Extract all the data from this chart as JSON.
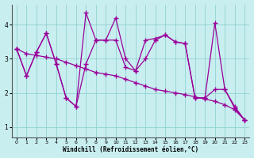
{
  "xlabel": "Windchill (Refroidissement éolien,°C)",
  "background_color": "#c8eef0",
  "line_color": "#990099",
  "grid_color": "#88cccc",
  "xlim": [
    -0.5,
    23.5
  ],
  "ylim": [
    0.7,
    4.6
  ],
  "xticks": [
    0,
    1,
    2,
    3,
    4,
    5,
    6,
    7,
    8,
    9,
    10,
    11,
    12,
    13,
    14,
    15,
    16,
    17,
    18,
    19,
    20,
    21,
    22,
    23
  ],
  "yticks": [
    1,
    2,
    3,
    4
  ],
  "series": [
    {
      "x": [
        0,
        1,
        2,
        3,
        4,
        5,
        6,
        7,
        8,
        9,
        10,
        11,
        12,
        13,
        14,
        15,
        16,
        17,
        18,
        19,
        20,
        21,
        22,
        23
      ],
      "y": [
        3.3,
        2.5,
        3.2,
        3.75,
        2.85,
        1.85,
        1.6,
        4.35,
        3.55,
        3.55,
        4.2,
        3.0,
        2.65,
        3.0,
        3.55,
        3.7,
        3.5,
        3.45,
        1.85,
        1.85,
        4.05,
        2.1,
        1.6,
        1.2
      ]
    },
    {
      "x": [
        0,
        1,
        2,
        3,
        4,
        5,
        6,
        7,
        8,
        9,
        10,
        11,
        12,
        13,
        14,
        15,
        16,
        17,
        18,
        19,
        20,
        21,
        22,
        23
      ],
      "y": [
        3.3,
        2.5,
        3.2,
        3.75,
        2.85,
        1.85,
        1.6,
        2.85,
        3.55,
        3.55,
        3.55,
        2.75,
        2.65,
        3.55,
        3.6,
        3.7,
        3.5,
        3.45,
        1.85,
        1.85,
        2.1,
        2.1,
        1.55,
        1.2
      ]
    },
    {
      "x": [
        0,
        1,
        2,
        3,
        4,
        5,
        6,
        7,
        8,
        9,
        10,
        11,
        12,
        13,
        14,
        15,
        16,
        17,
        18,
        19,
        20,
        21,
        22,
        23
      ],
      "y": [
        3.3,
        3.15,
        3.1,
        3.05,
        3.0,
        2.9,
        2.8,
        2.7,
        2.6,
        2.55,
        2.5,
        2.4,
        2.3,
        2.2,
        2.1,
        2.05,
        2.0,
        1.95,
        1.88,
        1.82,
        1.75,
        1.65,
        1.5,
        1.2
      ]
    }
  ]
}
